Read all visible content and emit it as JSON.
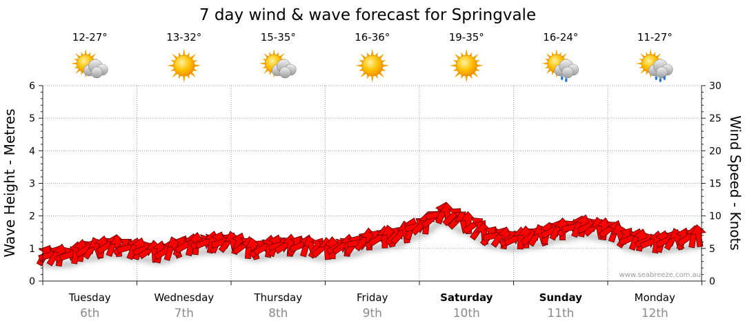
{
  "chart_data": {
    "type": "line",
    "title": "7 day wind & wave forecast for Springvale",
    "ylabel_left": "Wave Height - Metres",
    "ylabel_right": "Wind Speed - Knots",
    "ylim_left": [
      0,
      6
    ],
    "ylim_right": [
      0,
      30
    ],
    "yticks_left": [
      "0",
      "1",
      "2",
      "3",
      "4",
      "5",
      "6"
    ],
    "yticks_right": [
      "0",
      "5",
      "10",
      "15",
      "20",
      "25",
      "30"
    ],
    "grid": true,
    "credit": "www.seabreeze.com.au",
    "days": [
      {
        "name": "Tuesday",
        "date": "6th",
        "temp": "12-27°",
        "icon": "sun-cloud-icon",
        "bold": false
      },
      {
        "name": "Wednesday",
        "date": "7th",
        "temp": "13-32°",
        "icon": "sun-icon",
        "bold": false
      },
      {
        "name": "Thursday",
        "date": "8th",
        "temp": "15-35°",
        "icon": "sun-cloud-icon",
        "bold": false
      },
      {
        "name": "Friday",
        "date": "9th",
        "temp": "16-36°",
        "icon": "sun-icon",
        "bold": false
      },
      {
        "name": "Saturday",
        "date": "10th",
        "temp": "19-35°",
        "icon": "sun-icon",
        "bold": true
      },
      {
        "name": "Sunday",
        "date": "11th",
        "temp": "16-24°",
        "icon": "sun-cloud-rain-icon",
        "bold": true
      },
      {
        "name": "Monday",
        "date": "12th",
        "temp": "11-27°",
        "icon": "sun-cloud-storm-icon",
        "bold": false
      }
    ],
    "series": [
      {
        "unit": "knots",
        "x": [
          0,
          0.25,
          0.5,
          0.75,
          1,
          1.25,
          1.5,
          1.75,
          2,
          2.25,
          2.5,
          2.75,
          3,
          3.25,
          3.5,
          3.75,
          4,
          4.25,
          4.5,
          4.75,
          5,
          5.25,
          5.5,
          5.75,
          6,
          6.25,
          6.5,
          6.75,
          7
        ],
        "values": [
          4,
          4,
          5,
          5.5,
          5,
          4.5,
          5.5,
          6,
          6,
          5,
          5.5,
          5.5,
          5,
          5.5,
          6.5,
          7,
          8.5,
          10.5,
          9,
          7,
          6.5,
          7,
          8,
          8.5,
          8,
          6.5,
          6,
          6.5,
          7
        ]
      }
    ]
  }
}
